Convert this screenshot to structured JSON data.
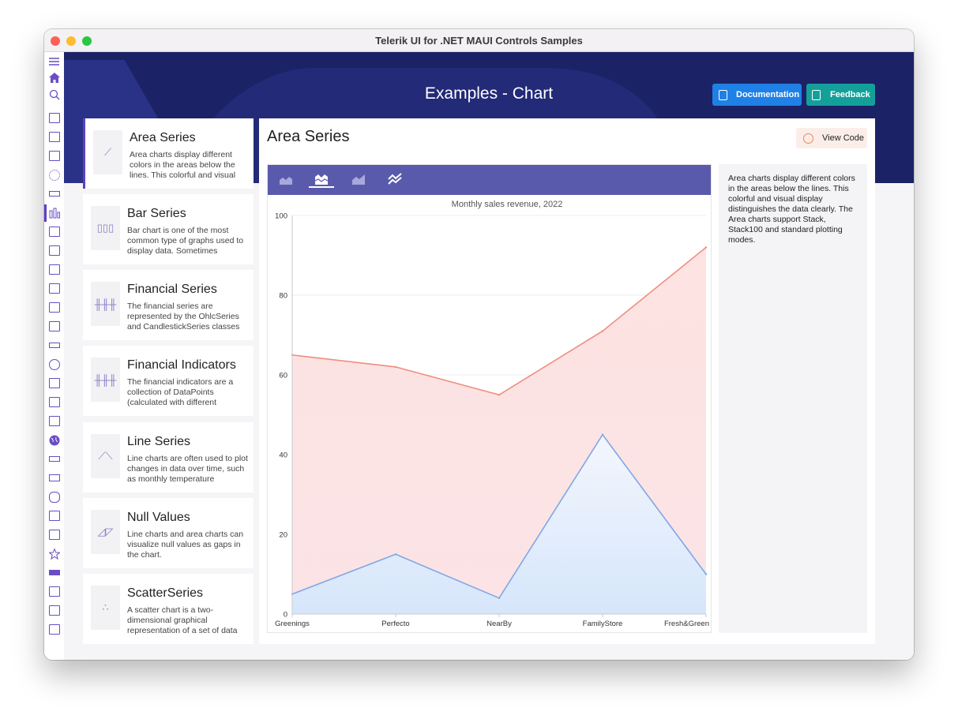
{
  "window": {
    "title": "Telerik UI for .NET MAUI Controls Samples"
  },
  "header": {
    "title": "Examples - Chart",
    "documentation_label": "Documentation",
    "feedback_label": "Feedback"
  },
  "examples": [
    {
      "title": "Area Series",
      "desc": "Area charts display different colors in the areas below the lines. This colorful and visual",
      "icon": "area-chart-icon",
      "glyph": "⟋"
    },
    {
      "title": "Bar Series",
      "desc": "Bar chart is one of the most common type of graphs used to display data. Sometimes",
      "icon": "bar-chart-icon",
      "glyph": "▯▯▯"
    },
    {
      "title": "Financial Series",
      "desc": "The financial series are represented by the OhlcSeries and CandlestickSeries classes",
      "icon": "candlestick-icon",
      "glyph": "╫╫╫"
    },
    {
      "title": "Financial Indicators",
      "desc": "The financial indicators are a collection of DataPoints (calculated with different",
      "icon": "indicator-icon",
      "glyph": "╫╫╫"
    },
    {
      "title": "Line Series",
      "desc": "Line charts are often used to plot changes in data over time, such as monthly temperature",
      "icon": "line-chart-icon",
      "glyph": "⟋⟍"
    },
    {
      "title": "Null Values",
      "desc": "Line charts and area charts can visualize null values as gaps in the chart.",
      "icon": "null-values-icon",
      "glyph": "◿◸"
    },
    {
      "title": "ScatterSeries",
      "desc": "A scatter chart is a two-dimensional graphical representation of a set of data",
      "icon": "scatter-icon",
      "glyph": "∴"
    }
  ],
  "content": {
    "title": "Area Series",
    "view_code_label": "View Code",
    "description": "Area charts display different colors in the areas below the lines. This colorful and visual display distinguishes the data clearly. The Area charts support Stack, Stack100 and standard plotting modes."
  },
  "chart_toolbar": {
    "modes": [
      "area-mode-icon",
      "stack-mode-icon",
      "stack100-mode-icon",
      "line-mode-icon"
    ],
    "selected": 1
  },
  "colors": {
    "accent": "#5d3fc2",
    "toolbar": "#5a5aad",
    "series1_stroke": "#f08d80",
    "series2_stroke": "#7fa7e6"
  },
  "chart_data": {
    "type": "area",
    "title": "Monthly sales revenue, 2022",
    "categories": [
      "Greenings",
      "Perfecto",
      "NearBy",
      "FamilyStore",
      "Fresh&Green"
    ],
    "series": [
      {
        "values": [
          65,
          62,
          55,
          71,
          92
        ]
      },
      {
        "values": [
          5,
          15,
          4,
          45,
          10
        ]
      }
    ],
    "ylim": [
      0,
      100
    ],
    "yticks": [
      0,
      20,
      40,
      60,
      80,
      100
    ],
    "grid": true
  }
}
